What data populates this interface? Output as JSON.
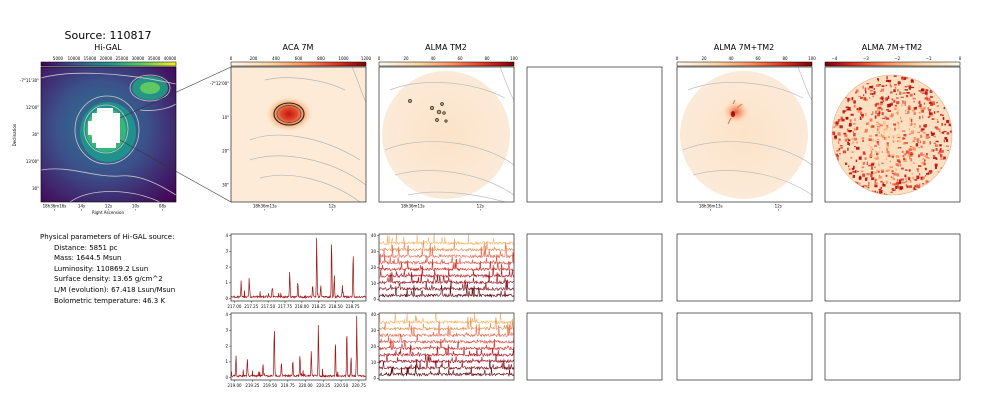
{
  "page_title": "Source: 110817",
  "panels": {
    "higal": {
      "title": "Hi-GAL",
      "colorbar_ticks": [
        "5000",
        "10000",
        "15000",
        "20000",
        "25000",
        "30000",
        "35000",
        "40000"
      ],
      "y_ticks": [
        "-7°11'30\"",
        "12'00\"",
        "30\"",
        "13'00\"",
        "30\""
      ],
      "x_ticks": [
        "18h36m16s",
        "14s",
        "12s",
        "10s",
        "08s"
      ],
      "xlabel": "Right Ascension",
      "ylabel": "Declination"
    },
    "aca7m": {
      "title": "ACA 7M",
      "colorbar_ticks": [
        "0",
        "200",
        "400",
        "600",
        "800",
        "1000",
        "1200"
      ],
      "y_ticks": [
        "-7°12'00\"",
        "10\"",
        "20\"",
        "30\""
      ],
      "x_ticks": [
        "18h36m13s",
        "12s"
      ]
    },
    "almatm2": {
      "title": "ALMA TM2",
      "colorbar_ticks": [
        "0",
        "20",
        "40",
        "60",
        "80",
        "100"
      ],
      "x_ticks": [
        "18h36m13s",
        "12s"
      ]
    },
    "alma7mtm2": {
      "title": "ALMA 7M+TM2",
      "colorbar_ticks": [
        "0",
        "20",
        "40",
        "60",
        "80",
        "100"
      ],
      "x_ticks": [
        "18h36m13s",
        "12s"
      ]
    },
    "alma7mtm2_ratio": {
      "title": "ALMA 7M+TM2",
      "colorbar_ticks": [
        "−4",
        "−3",
        "−2",
        "−1",
        "0"
      ]
    }
  },
  "physical_params": {
    "heading": "Physical parameters of Hi-GAL source:",
    "lines": [
      "Distance: 5851 pc",
      "Mass: 1644.5 Msun",
      "Luminosity: 110869.2 Lsun",
      "Surface density: 13.65 g/cm^2",
      "L/M (evolution): 67.418 Lsun/Msun",
      "Bolometric temperature: 46.3 K"
    ]
  },
  "chart_data": [
    {
      "type": "line",
      "panel": "spectrum-aca-spw1",
      "x_ticks": [
        "217.00",
        "217.25",
        "217.50",
        "217.75",
        "218.00",
        "218.25",
        "218.50",
        "218.75"
      ],
      "y_ticks": [
        "0",
        "1",
        "2",
        "3",
        "4"
      ],
      "xlim": [
        216.95,
        218.95
      ],
      "ylim": [
        -0.15,
        4.1
      ],
      "peaks": [
        [
          217.1,
          0.9
        ],
        [
          217.22,
          1.2
        ],
        [
          217.56,
          0.6
        ],
        [
          217.82,
          1.7
        ],
        [
          217.94,
          1.1
        ],
        [
          218.16,
          0.8
        ],
        [
          218.22,
          3.9
        ],
        [
          218.28,
          0.8
        ],
        [
          218.44,
          3.9
        ],
        [
          218.48,
          1.4
        ],
        [
          218.6,
          0.8
        ],
        [
          218.76,
          3.0
        ]
      ],
      "color": "#a01515"
    },
    {
      "type": "line",
      "panel": "spectrum-alma-spw1",
      "y_ticks": [
        "0",
        "10",
        "20",
        "30",
        "40"
      ],
      "xlim": [
        216.95,
        218.95
      ],
      "ylim": [
        -1,
        41
      ],
      "series_count": 9,
      "colors": [
        "#f7b463",
        "#e88f48",
        "#ec6a4e",
        "#e34c3e",
        "#cf2d24",
        "#b8121c",
        "#9b0c17",
        "#7d0712",
        "#5a020c"
      ]
    },
    {
      "type": "line",
      "panel": "spectrum-aca-spw2",
      "x_ticks": [
        "219.00",
        "219.25",
        "219.50",
        "219.75",
        "220.00",
        "220.25",
        "220.50",
        "220.75"
      ],
      "y_ticks": [
        "0",
        "1",
        "2",
        "3",
        "4"
      ],
      "xlim": [
        218.95,
        220.85
      ],
      "ylim": [
        -0.15,
        4.1
      ],
      "peaks": [
        [
          219.02,
          1.4
        ],
        [
          219.18,
          1.1
        ],
        [
          219.4,
          0.8
        ],
        [
          219.56,
          3.0
        ],
        [
          219.66,
          0.9
        ],
        [
          219.82,
          1.1
        ],
        [
          219.92,
          1.4
        ],
        [
          220.08,
          1.7
        ],
        [
          220.18,
          3.3
        ],
        [
          220.42,
          2.3
        ],
        [
          220.58,
          3.1
        ],
        [
          220.64,
          1.3
        ],
        [
          220.72,
          3.9
        ]
      ],
      "color": "#a01515"
    },
    {
      "type": "line",
      "panel": "spectrum-alma-spw2",
      "y_ticks": [
        "0",
        "10",
        "20",
        "30",
        "40"
      ],
      "xlim": [
        218.95,
        220.85
      ],
      "ylim": [
        -1,
        41
      ],
      "series_count": 9,
      "colors": [
        "#f7b463",
        "#e88f48",
        "#ec6a4e",
        "#e34c3e",
        "#cf2d24",
        "#b8121c",
        "#9b0c17",
        "#7d0712",
        "#5a020c"
      ]
    }
  ]
}
